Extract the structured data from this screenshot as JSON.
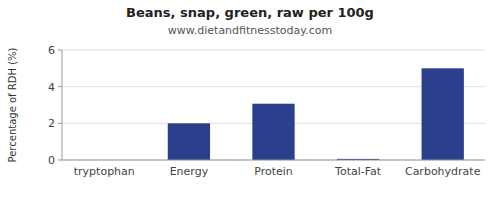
{
  "chart_data": {
    "type": "bar",
    "title": "Beans, snap, green, raw per 100g",
    "subtitle": "www.dietandfitnesstoday.com",
    "categories": [
      "tryptophan",
      "Energy",
      "Protein",
      "Total-Fat",
      "Carbohydrate"
    ],
    "values": [
      0.0,
      2.0,
      3.07,
      0.06,
      5.0
    ],
    "color": "#2b3f8c",
    "ylim": [
      0,
      6
    ],
    "yticks": [
      0,
      2,
      4,
      6
    ],
    "ylabel": "Percentage of RDH (%)",
    "grid": true
  }
}
